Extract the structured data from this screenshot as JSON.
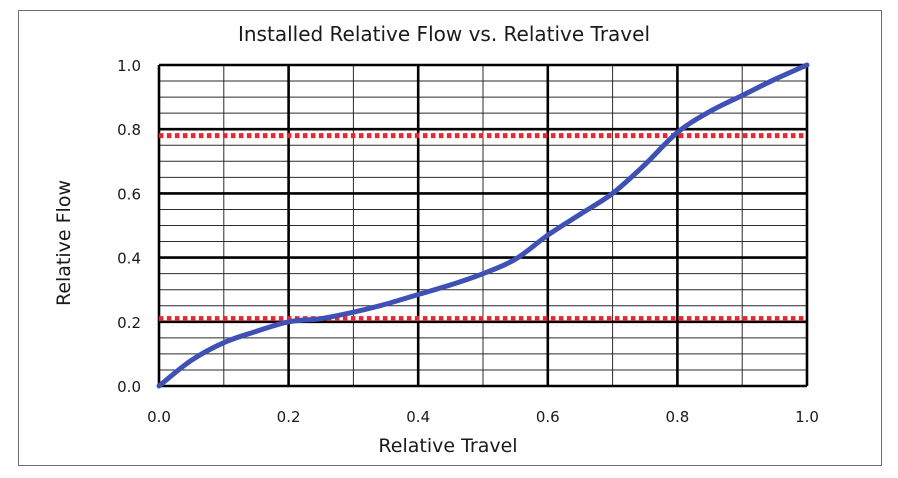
{
  "chart_data": {
    "type": "line",
    "title": "Installed Relative Flow vs. Relative Travel",
    "xlabel": "Relative Travel",
    "ylabel": "Relative Flow",
    "xlim": [
      0,
      1
    ],
    "ylim": [
      0,
      1
    ],
    "x_ticks": [
      "0.0",
      "0.2",
      "0.4",
      "0.6",
      "0.8",
      "1.0"
    ],
    "y_ticks": [
      "0.0",
      "0.2",
      "0.4",
      "0.6",
      "0.8",
      "1.0"
    ],
    "grid": true,
    "legend": "none",
    "series": [
      {
        "color": "#3f51b5",
        "style": "solid",
        "x": [
          0.0,
          0.05,
          0.1,
          0.15,
          0.2,
          0.25,
          0.3,
          0.35,
          0.4,
          0.45,
          0.5,
          0.55,
          0.6,
          0.65,
          0.7,
          0.75,
          0.8,
          0.85,
          0.9,
          0.95,
          1.0
        ],
        "y": [
          0.0,
          0.08,
          0.135,
          0.17,
          0.2,
          0.21,
          0.23,
          0.255,
          0.285,
          0.315,
          0.35,
          0.395,
          0.47,
          0.535,
          0.6,
          0.69,
          0.79,
          0.855,
          0.905,
          0.955,
          1.0
        ]
      }
    ],
    "reference_lines": [
      {
        "orientation": "horizontal",
        "y": 0.78,
        "color": "#e8262f",
        "style": "dotted"
      },
      {
        "orientation": "horizontal",
        "y": 0.21,
        "color": "#e8262f",
        "style": "dotted"
      }
    ]
  }
}
